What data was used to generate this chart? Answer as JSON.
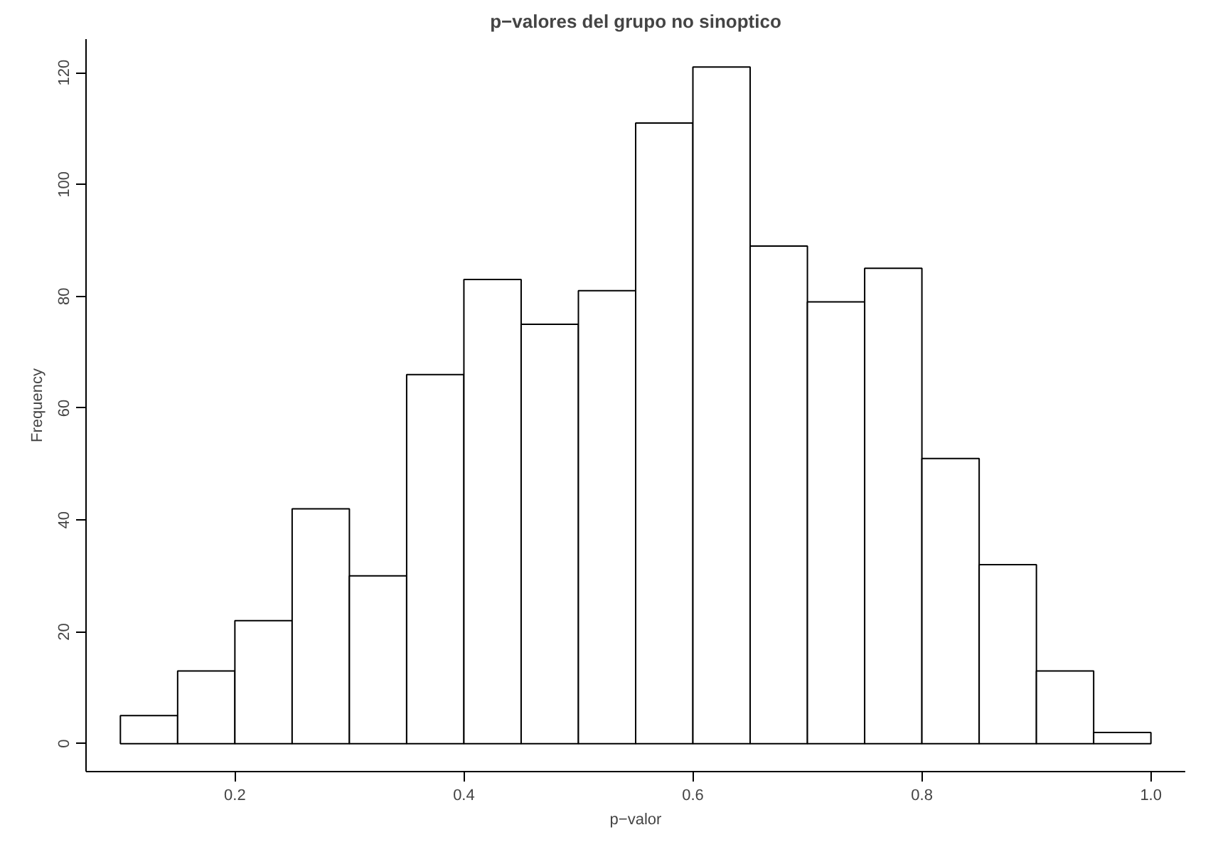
{
  "chart_data": {
    "type": "histogram",
    "title": "p−valores del grupo no sinoptico",
    "xlabel": "p−valor",
    "ylabel": "Frequency",
    "bins": [
      0.1,
      0.15,
      0.2,
      0.25,
      0.3,
      0.35,
      0.4,
      0.45,
      0.5,
      0.55,
      0.6,
      0.65,
      0.7,
      0.75,
      0.8,
      0.85,
      0.9,
      0.95,
      1.0
    ],
    "values": [
      5,
      13,
      22,
      42,
      30,
      66,
      83,
      75,
      81,
      111,
      121,
      89,
      79,
      85,
      51,
      32,
      13,
      2
    ],
    "color": "#ffffff",
    "xlim": [
      0.07,
      1.03
    ],
    "xticks": [
      0.2,
      0.4,
      0.6,
      0.8,
      {
        "value": 1.0,
        "label": "1.0"
      }
    ],
    "ylim": [
      -5,
      126
    ],
    "yticks": [
      0,
      20,
      40,
      60,
      80,
      100,
      120
    ],
    "grid": false
  }
}
